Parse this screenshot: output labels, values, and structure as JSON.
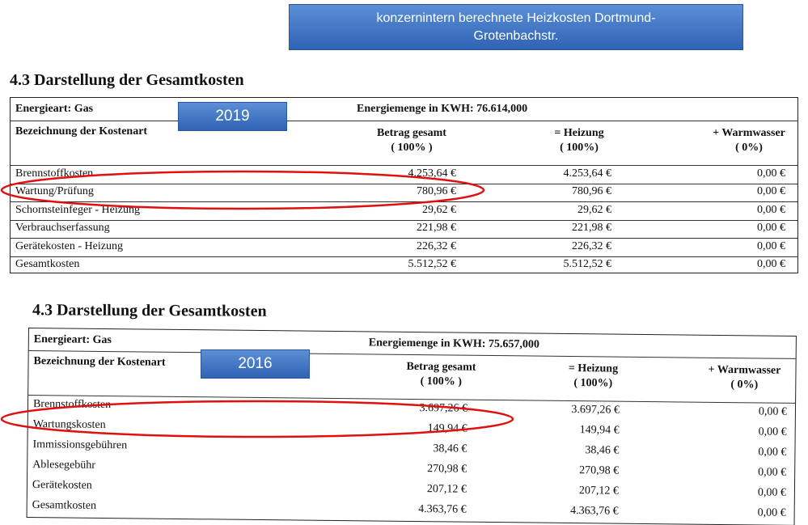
{
  "banner": "konzernintern berechnete Heizkosten Dortmund-Grotenbachstr.",
  "sections": [
    {
      "title": "4.3 Darstellung der Gesamtkosten",
      "year": "2019",
      "energy_type": "Energieart: Gas",
      "energy_amount": "Energiemenge in KWH: 76.614,000",
      "headers": [
        {
          "label": "Bezeichnung der Kostenart"
        },
        {
          "label": "Betrag gesamt",
          "share": "( 100% )"
        },
        {
          "label": "= Heizung",
          "share": "( 100%)"
        },
        {
          "label": "+ Warmwasser",
          "share": "( 0%)"
        }
      ],
      "rows": [
        [
          "Brennstoffkosten",
          "4.253,64 €",
          "4.253,64 €",
          "0,00 €"
        ],
        [
          "Wartung/Prüfung",
          "780,96 €",
          "780,96 €",
          "0,00 €"
        ],
        [
          "Schornsteinfeger - Heizung",
          "29,62 €",
          "29,62 €",
          "0,00 €"
        ],
        [
          "Verbrauchserfassung",
          "221,98 €",
          "221,98 €",
          "0,00 €"
        ],
        [
          "Gerätekosten - Heizung",
          "226,32 €",
          "226,32 €",
          "0,00 €"
        ],
        [
          "Gesamtkosten",
          "5.512,52 €",
          "5.512,52 €",
          "0,00 €"
        ]
      ]
    },
    {
      "title": "4.3 Darstellung der Gesamtkosten",
      "year": "2016",
      "energy_type": "Energieart: Gas",
      "energy_amount": "Energiemenge in KWH: 75.657,000",
      "headers": [
        {
          "label": "Bezeichnung der Kostenart"
        },
        {
          "label": "Betrag gesamt",
          "share": "( 100% )"
        },
        {
          "label": "= Heizung",
          "share": "( 100%)"
        },
        {
          "label": "+ Warmwasser",
          "share": "( 0%)"
        }
      ],
      "rows": [
        [
          "Brennstoffkosten",
          "3.697,26 €",
          "3.697,26 €",
          "0,00 €"
        ],
        [
          "Wartungskosten",
          "149,94 €",
          "149,94 €",
          "0,00 €"
        ],
        [
          "Immissionsgebühren",
          "38,46 €",
          "38,46 €",
          "0,00 €"
        ],
        [
          "Ablesegebühr",
          "270,98 €",
          "270,98 €",
          "0,00 €"
        ],
        [
          "Gerätekosten",
          "207,12 €",
          "207,12 €",
          "0,00 €"
        ],
        [
          "Gesamtkosten",
          "4.363,76 €",
          "4.363,76 €",
          "0,00 €"
        ]
      ]
    }
  ]
}
